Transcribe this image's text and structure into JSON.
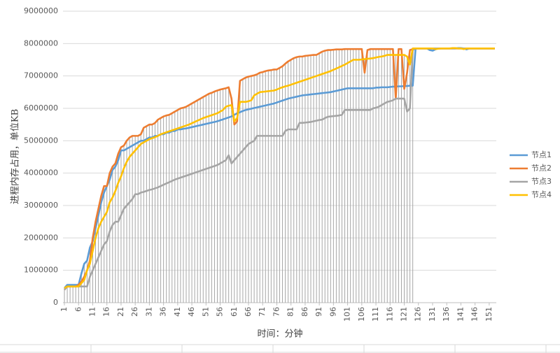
{
  "chart_data": {
    "type": "line",
    "y_label": "进程内存占用，单位KB",
    "x_label": "时间：分钟",
    "ylim": [
      0,
      9000000
    ],
    "yticks": [
      0,
      1000000,
      2000000,
      3000000,
      4000000,
      5000000,
      6000000,
      7000000,
      8000000,
      9000000
    ],
    "grid": true,
    "drop_lines": true,
    "legend": "right",
    "categories": [
      "1",
      null,
      null,
      null,
      null,
      "6",
      null,
      null,
      null,
      null,
      "11",
      null,
      null,
      null,
      null,
      "16",
      null,
      null,
      null,
      null,
      "21",
      null,
      null,
      null,
      null,
      "26",
      null,
      null,
      null,
      null,
      "31",
      null,
      null,
      null,
      null,
      "36",
      null,
      null,
      null,
      null,
      "41",
      null,
      null,
      null,
      null,
      "46",
      null,
      null,
      null,
      null,
      "51",
      null,
      null,
      null,
      null,
      "56",
      null,
      null,
      null,
      null,
      "61",
      null,
      null,
      null,
      null,
      "66",
      null,
      null,
      null,
      null,
      "71",
      null,
      null,
      null,
      null,
      "76",
      null,
      null,
      null,
      null,
      "81",
      null,
      null,
      null,
      null,
      "86",
      null,
      null,
      null,
      null,
      "91",
      null,
      null,
      null,
      null,
      "96",
      null,
      null,
      null,
      null,
      "101",
      null,
      null,
      null,
      null,
      "106",
      null,
      null,
      null,
      null,
      "111",
      null,
      null,
      null,
      null,
      "116",
      null,
      null,
      null,
      null,
      "121",
      null,
      null,
      null,
      null,
      "126",
      null,
      null,
      null,
      null,
      "131",
      null,
      null,
      null,
      null,
      "136",
      null,
      null,
      null,
      null,
      "141",
      null,
      null,
      null,
      null,
      "146",
      null,
      null,
      null,
      null,
      "151",
      null,
      null
    ],
    "series": [
      {
        "name": "节点1",
        "color": "#5b9bd5",
        "values": [
          450000,
          550000,
          550000,
          550000,
          550000,
          550000,
          900000,
          1200000,
          1300000,
          1700000,
          1900000,
          2300000,
          2700000,
          3100000,
          3400000,
          3600000,
          3800000,
          4100000,
          4200000,
          4400000,
          4700000,
          4700000,
          4750000,
          4800000,
          4850000,
          4900000,
          4950000,
          5000000,
          5000000,
          5050000,
          5100000,
          5100000,
          5150000,
          5150000,
          5200000,
          5200000,
          5250000,
          5250000,
          5300000,
          5300000,
          5350000,
          5350000,
          5370000,
          5380000,
          5400000,
          5420000,
          5440000,
          5460000,
          5480000,
          5500000,
          5520000,
          5540000,
          5560000,
          5580000,
          5600000,
          5630000,
          5660000,
          5690000,
          5720000,
          5750000,
          5800000,
          5850000,
          5880000,
          5920000,
          5950000,
          5970000,
          5990000,
          6010000,
          6030000,
          6050000,
          6070000,
          6090000,
          6110000,
          6130000,
          6150000,
          6180000,
          6210000,
          6240000,
          6270000,
          6300000,
          6320000,
          6340000,
          6360000,
          6380000,
          6400000,
          6410000,
          6420000,
          6430000,
          6440000,
          6450000,
          6460000,
          6470000,
          6480000,
          6490000,
          6500000,
          6520000,
          6540000,
          6560000,
          6580000,
          6600000,
          6620000,
          6620000,
          6620000,
          6620000,
          6620000,
          6620000,
          6620000,
          6620000,
          6620000,
          6620000,
          6640000,
          6640000,
          6650000,
          6650000,
          6650000,
          6660000,
          6670000,
          6670000,
          6680000,
          6680000,
          6690000,
          6690000,
          6700000,
          6700000,
          7850000,
          7850000,
          7850000,
          7850000,
          7850000,
          7800000,
          7780000,
          7820000,
          7850000,
          7850000,
          7850000,
          7850000,
          7850000,
          7850000,
          7850000,
          7860000,
          7860000,
          7850000,
          7820000,
          7850000,
          7850000,
          7850000,
          7850000,
          7850000,
          7850000,
          7850000,
          7850000,
          7850000,
          7850000
        ]
      },
      {
        "name": "节点2",
        "color": "#ed7d31",
        "values": [
          400000,
          500000,
          500000,
          500000,
          500000,
          550000,
          650000,
          800000,
          1000000,
          1300000,
          2000000,
          2500000,
          2900000,
          3300000,
          3600000,
          3600000,
          4000000,
          4200000,
          4300000,
          4600000,
          4800000,
          4850000,
          5000000,
          5100000,
          5150000,
          5150000,
          5150000,
          5200000,
          5400000,
          5450000,
          5500000,
          5500000,
          5550000,
          5650000,
          5700000,
          5750000,
          5780000,
          5800000,
          5850000,
          5900000,
          5950000,
          6000000,
          6020000,
          6050000,
          6100000,
          6150000,
          6200000,
          6250000,
          6300000,
          6350000,
          6400000,
          6450000,
          6480000,
          6520000,
          6550000,
          6580000,
          6600000,
          6620000,
          6650000,
          6300000,
          5500000,
          5600000,
          6850000,
          6900000,
          6950000,
          6980000,
          7000000,
          7020000,
          7050000,
          7100000,
          7120000,
          7150000,
          7170000,
          7180000,
          7200000,
          7200000,
          7250000,
          7300000,
          7380000,
          7450000,
          7500000,
          7550000,
          7580000,
          7600000,
          7600000,
          7620000,
          7630000,
          7640000,
          7650000,
          7650000,
          7700000,
          7750000,
          7780000,
          7800000,
          7800000,
          7810000,
          7820000,
          7820000,
          7820000,
          7830000,
          7830000,
          7830000,
          7830000,
          7830000,
          7830000,
          7830000,
          7100000,
          7800000,
          7830000,
          7830000,
          7830000,
          7830000,
          7830000,
          7830000,
          7830000,
          7830000,
          7830000,
          6300000,
          7830000,
          7830000,
          6600000,
          7100000,
          7800000,
          7830000,
          7850000,
          7850000,
          7850000,
          7850000,
          7850000,
          7850000,
          7850000,
          7850000,
          7850000,
          7850000,
          7850000,
          7850000,
          7850000,
          7850000,
          7850000,
          7850000,
          7850000,
          7850000,
          7850000,
          7850000,
          7850000,
          7850000,
          7850000,
          7850000,
          7850000,
          7850000,
          7850000,
          7850000,
          7850000
        ]
      },
      {
        "name": "节点3",
        "color": "#a5a5a5",
        "values": [
          400000,
          500000,
          500000,
          500000,
          500000,
          500000,
          500000,
          500000,
          500000,
          800000,
          1000000,
          1200000,
          1400000,
          1600000,
          1800000,
          1900000,
          2200000,
          2400000,
          2500000,
          2500000,
          2700000,
          2900000,
          3000000,
          3100000,
          3200000,
          3350000,
          3350000,
          3400000,
          3420000,
          3450000,
          3480000,
          3500000,
          3530000,
          3560000,
          3600000,
          3640000,
          3680000,
          3720000,
          3760000,
          3800000,
          3830000,
          3860000,
          3890000,
          3920000,
          3950000,
          3980000,
          4010000,
          4040000,
          4070000,
          4100000,
          4130000,
          4160000,
          4190000,
          4220000,
          4250000,
          4300000,
          4350000,
          4400000,
          4550000,
          4300000,
          4400000,
          4500000,
          4600000,
          4700000,
          4800000,
          4900000,
          4950000,
          5000000,
          5150000,
          5150000,
          5150000,
          5150000,
          5150000,
          5150000,
          5150000,
          5150000,
          5150000,
          5150000,
          5300000,
          5350000,
          5350000,
          5350000,
          5350000,
          5550000,
          5550000,
          5560000,
          5570000,
          5580000,
          5600000,
          5620000,
          5640000,
          5650000,
          5700000,
          5740000,
          5750000,
          5760000,
          5770000,
          5780000,
          5800000,
          5950000,
          5950000,
          5950000,
          5950000,
          5950000,
          5950000,
          5950000,
          5950000,
          5950000,
          5950000,
          6000000,
          6020000,
          6050000,
          6100000,
          6150000,
          6200000,
          6220000,
          6250000,
          6300000,
          6300000,
          6300000,
          6300000,
          5900000,
          6000000,
          7800000,
          7850000,
          7850000,
          7850000,
          7850000,
          7850000,
          7850000,
          7850000,
          7850000,
          7850000,
          7850000,
          7850000,
          7850000,
          7850000,
          7850000,
          7850000,
          7850000,
          7850000,
          7850000,
          7850000,
          7850000,
          7850000,
          7850000,
          7850000,
          7850000,
          7850000,
          7850000,
          7850000,
          7850000,
          7850000
        ]
      },
      {
        "name": "节点4",
        "color": "#ffc000",
        "values": [
          450000,
          500000,
          500000,
          500000,
          500000,
          500000,
          600000,
          700000,
          1000000,
          1200000,
          1600000,
          2000000,
          2300000,
          2500000,
          2650000,
          2800000,
          3100000,
          3250000,
          3450000,
          3700000,
          3900000,
          4150000,
          4350000,
          4500000,
          4600000,
          4700000,
          4800000,
          4900000,
          4950000,
          5000000,
          5050000,
          5080000,
          5110000,
          5150000,
          5200000,
          5230000,
          5260000,
          5290000,
          5320000,
          5350000,
          5380000,
          5410000,
          5440000,
          5470000,
          5500000,
          5540000,
          5580000,
          5620000,
          5660000,
          5700000,
          5730000,
          5760000,
          5790000,
          5820000,
          5850000,
          5900000,
          5950000,
          6050000,
          6080000,
          6100000,
          5600000,
          5700000,
          6200000,
          6200000,
          6200000,
          6220000,
          6250000,
          6400000,
          6450000,
          6500000,
          6510000,
          6520000,
          6530000,
          6540000,
          6550000,
          6580000,
          6620000,
          6650000,
          6680000,
          6700000,
          6730000,
          6760000,
          6790000,
          6820000,
          6850000,
          6880000,
          6910000,
          6940000,
          6970000,
          7000000,
          7030000,
          7060000,
          7090000,
          7120000,
          7150000,
          7190000,
          7230000,
          7270000,
          7310000,
          7350000,
          7400000,
          7450000,
          7500000,
          7500000,
          7500000,
          7510000,
          7520000,
          7530000,
          7540000,
          7550000,
          7570000,
          7590000,
          7600000,
          7620000,
          7650000,
          7650000,
          7650000,
          7650000,
          7650000,
          7650000,
          7650000,
          7600000,
          7350000,
          7850000,
          7850000,
          7850000,
          7850000,
          7850000,
          7850000,
          7850000,
          7850000,
          7830000,
          7840000,
          7850000,
          7850000,
          7850000,
          7850000,
          7860000,
          7860000,
          7850000,
          7850000,
          7830000,
          7850000,
          7850000,
          7850000,
          7850000,
          7850000,
          7850000,
          7850000,
          7850000,
          7850000,
          7850000,
          7850000
        ]
      }
    ]
  }
}
